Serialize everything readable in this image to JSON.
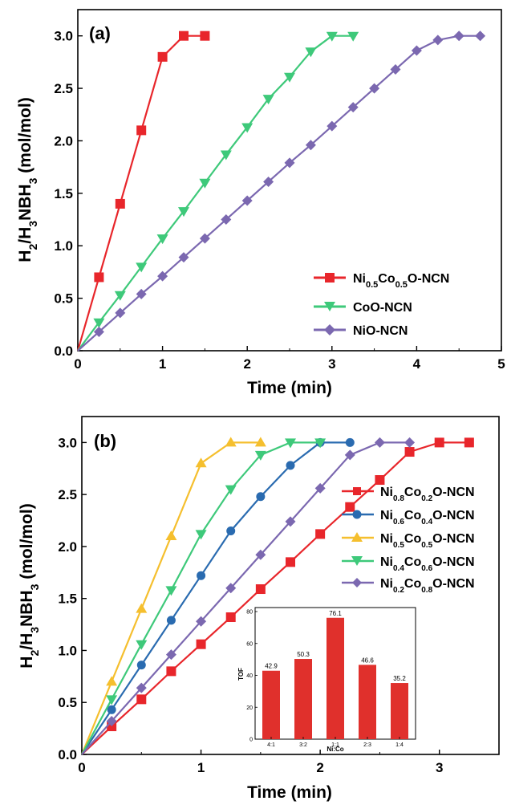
{
  "chart_data": [
    {
      "panel": "(a)",
      "type": "line",
      "xlabel": "Time (min)",
      "ylabel": "H2/H3NBH3 (mol/mol)",
      "xlim": [
        0,
        5
      ],
      "ylim": [
        0,
        3.25
      ],
      "xticks": [
        "0",
        "1",
        "2",
        "3",
        "4",
        "5"
      ],
      "yticks": [
        "0.0",
        "0.5",
        "1.0",
        "1.5",
        "2.0",
        "2.5",
        "3.0"
      ],
      "legend_position": "bottom-right",
      "series": [
        {
          "name": "Ni0.5Co0.5O-NCN",
          "color": "#e8262b",
          "marker": "square",
          "x": [
            0,
            0.25,
            0.5,
            0.75,
            1.0,
            1.25,
            1.5
          ],
          "y": [
            0,
            0.7,
            1.4,
            2.1,
            2.8,
            3.0,
            3.0
          ]
        },
        {
          "name": "CoO-NCN",
          "color": "#3ec97a",
          "marker": "triangle-down",
          "x": [
            0,
            0.25,
            0.5,
            0.75,
            1.0,
            1.25,
            1.5,
            1.75,
            2.0,
            2.25,
            2.5,
            2.75,
            3.0,
            3.25
          ],
          "y": [
            0,
            0.27,
            0.53,
            0.8,
            1.07,
            1.33,
            1.6,
            1.87,
            2.13,
            2.4,
            2.61,
            2.85,
            3.0,
            3.0
          ]
        },
        {
          "name": "NiO-NCN",
          "color": "#7b68b0",
          "marker": "diamond",
          "x": [
            0,
            0.25,
            0.5,
            0.75,
            1.0,
            1.25,
            1.5,
            1.75,
            2.0,
            2.25,
            2.5,
            2.75,
            3.0,
            3.25,
            3.5,
            3.75,
            4.0,
            4.25,
            4.5,
            4.75
          ],
          "y": [
            0,
            0.18,
            0.36,
            0.54,
            0.71,
            0.89,
            1.07,
            1.25,
            1.43,
            1.61,
            1.79,
            1.96,
            2.14,
            2.32,
            2.5,
            2.68,
            2.86,
            2.96,
            3.0,
            3.0
          ]
        }
      ]
    },
    {
      "panel": "(b)",
      "type": "line",
      "xlabel": "Time (min)",
      "ylabel": "H2/H3NBH3 (mol/mol)",
      "xlim": [
        0,
        3.5
      ],
      "ylim": [
        0,
        3.25
      ],
      "xticks": [
        "0",
        "1",
        "2",
        "3"
      ],
      "yticks": [
        "0.0",
        "0.5",
        "1.0",
        "1.5",
        "2.0",
        "2.5",
        "3.0"
      ],
      "legend_position": "right",
      "series": [
        {
          "name": "Ni0.8Co0.2O-NCN",
          "color": "#e8262b",
          "marker": "square",
          "x": [
            0,
            0.25,
            0.5,
            0.75,
            1.0,
            1.25,
            1.5,
            1.75,
            2.0,
            2.25,
            2.5,
            2.75,
            3.0,
            3.25
          ],
          "y": [
            0,
            0.27,
            0.53,
            0.8,
            1.06,
            1.32,
            1.59,
            1.85,
            2.12,
            2.38,
            2.64,
            2.91,
            3.0,
            3.0
          ]
        },
        {
          "name": "Ni0.6Co0.4O-NCN",
          "color": "#2a6bb0",
          "marker": "circle",
          "x": [
            0,
            0.25,
            0.5,
            0.75,
            1.0,
            1.25,
            1.5,
            1.75,
            2.0,
            2.25
          ],
          "y": [
            0,
            0.43,
            0.86,
            1.29,
            1.72,
            2.15,
            2.48,
            2.78,
            3.0,
            3.0
          ]
        },
        {
          "name": "Ni0.5Co0.5O-NCN",
          "color": "#f5bf2e",
          "marker": "triangle-up",
          "x": [
            0,
            0.25,
            0.5,
            0.75,
            1.0,
            1.25,
            1.5
          ],
          "y": [
            0,
            0.7,
            1.4,
            2.1,
            2.8,
            3.0,
            3.0
          ]
        },
        {
          "name": "Ni0.4Co0.6O-NCN",
          "color": "#3ec97a",
          "marker": "triangle-down",
          "x": [
            0,
            0.25,
            0.5,
            0.75,
            1.0,
            1.25,
            1.5,
            1.75,
            2.0
          ],
          "y": [
            0,
            0.53,
            1.06,
            1.58,
            2.12,
            2.55,
            2.88,
            3.0,
            3.0
          ]
        },
        {
          "name": "Ni0.2Co0.8O-NCN",
          "color": "#7b68b0",
          "marker": "diamond",
          "x": [
            0,
            0.25,
            0.5,
            0.75,
            1.0,
            1.25,
            1.5,
            1.75,
            2.0,
            2.25,
            2.5,
            2.75
          ],
          "y": [
            0,
            0.32,
            0.64,
            0.96,
            1.28,
            1.6,
            1.92,
            2.24,
            2.56,
            2.88,
            3.0,
            3.0
          ]
        }
      ]
    },
    {
      "panel": "(b) inset",
      "type": "bar",
      "xlabel": "Ni:Co",
      "ylabel": "TOF",
      "categories": [
        "4:1",
        "3:2",
        "1:1",
        "2:3",
        "1:4"
      ],
      "values": [
        42.9,
        50.3,
        76.1,
        46.6,
        35.2
      ],
      "data_labels": [
        "42.9",
        "50.3",
        "76.1",
        "46.6",
        "35.2"
      ],
      "ylim": [
        0,
        80
      ],
      "yticks": [
        "0",
        "20",
        "40",
        "60",
        "80"
      ],
      "color": "#e0302c"
    }
  ]
}
